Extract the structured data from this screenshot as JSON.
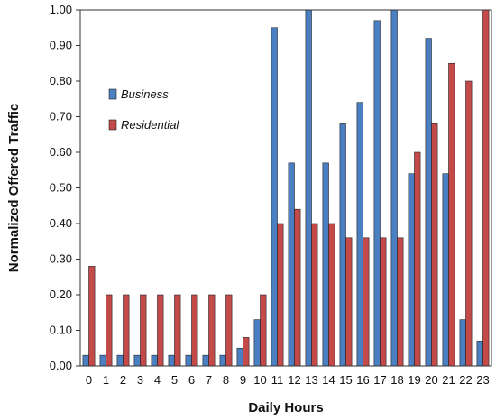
{
  "chart_data": {
    "type": "bar",
    "title": "",
    "xlabel": "Daily Hours",
    "ylabel": "Normalized Offered Traffic",
    "categories": [
      "0",
      "1",
      "2",
      "3",
      "4",
      "5",
      "6",
      "7",
      "8",
      "9",
      "10",
      "11",
      "12",
      "13",
      "14",
      "15",
      "16",
      "17",
      "18",
      "19",
      "20",
      "21",
      "22",
      "23"
    ],
    "ylim": [
      0,
      1.0
    ],
    "yticks": [
      "0.00",
      "0.10",
      "0.20",
      "0.30",
      "0.40",
      "0.50",
      "0.60",
      "0.70",
      "0.80",
      "0.90",
      "1.00"
    ],
    "grid": false,
    "legend_position": "top-left",
    "series": [
      {
        "name": "Business",
        "color": "#4a7fc1",
        "values": [
          0.03,
          0.03,
          0.03,
          0.03,
          0.03,
          0.03,
          0.03,
          0.03,
          0.03,
          0.05,
          0.13,
          0.95,
          0.57,
          1.0,
          0.57,
          0.68,
          0.74,
          0.97,
          1.0,
          0.54,
          0.92,
          0.54,
          0.13,
          0.07
        ]
      },
      {
        "name": "Residential",
        "color": "#c44a4a",
        "values": [
          0.28,
          0.2,
          0.2,
          0.2,
          0.2,
          0.2,
          0.2,
          0.2,
          0.2,
          0.08,
          0.2,
          0.4,
          0.44,
          0.4,
          0.4,
          0.36,
          0.36,
          0.36,
          0.36,
          0.6,
          0.68,
          0.85,
          0.8,
          1.0
        ]
      }
    ]
  }
}
